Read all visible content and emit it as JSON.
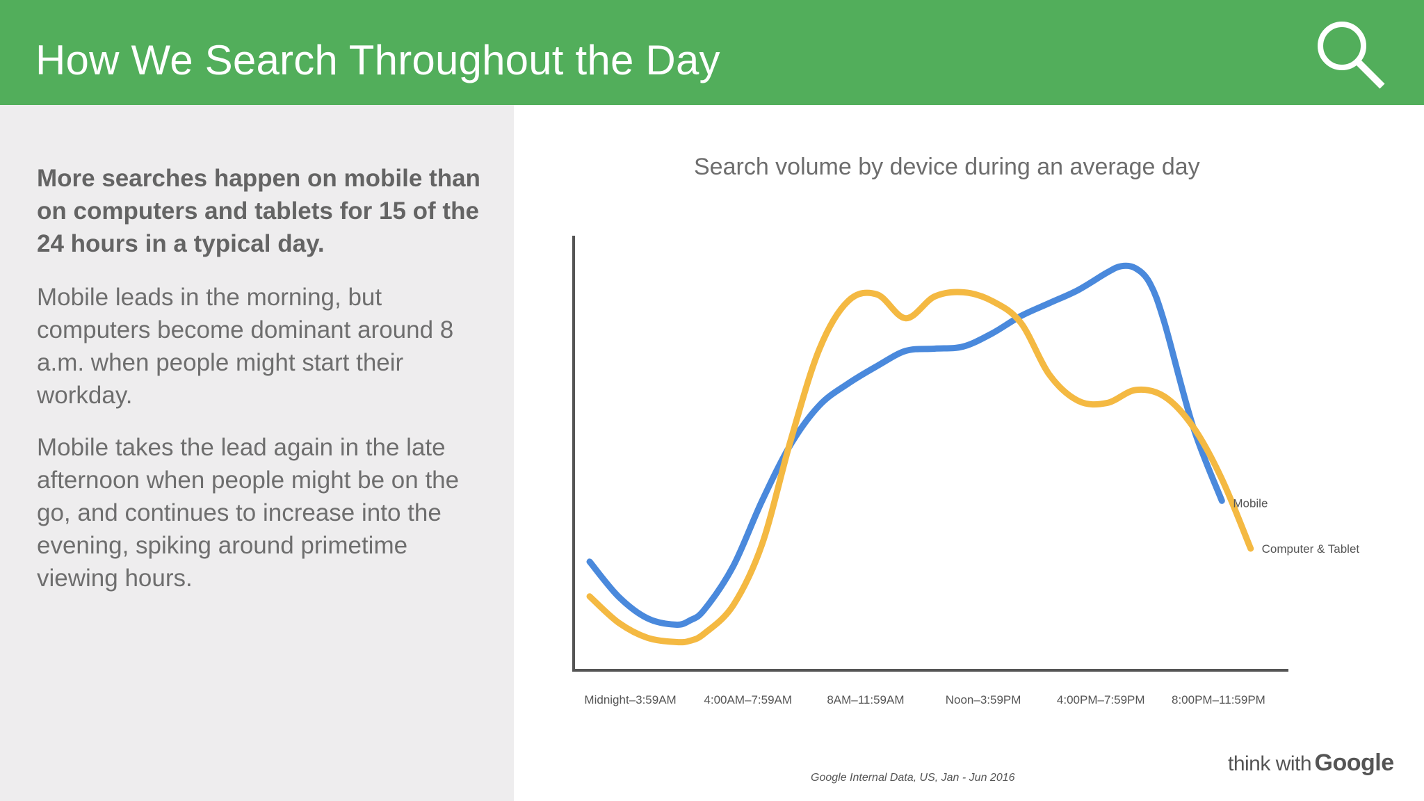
{
  "header": {
    "title": "How We Search Throughout the Day",
    "icon": "search-icon",
    "background_color": "#52ae5b"
  },
  "sidebar": {
    "lead": "More searches happen on mobile than on computers and tablets for 15 of the 24 hours in a typical day.",
    "paragraphs": [
      "Mobile leads in the morning, but computers become dominant around 8 a.m. when people might start their workday.",
      "Mobile takes the lead again in the late afternoon when people might be on the go, and continues to increase into the evening, spiking around primetime viewing hours."
    ]
  },
  "chart_data": {
    "type": "line",
    "title": "Search volume by device during an average day",
    "xlabel": "",
    "ylabel": "",
    "categories": [
      "Midnight–3:59AM",
      "4:00AM–7:59AM",
      "8AM–11:59AM",
      "Noon–3:59PM",
      "4:00PM–7:59PM",
      "8:00PM–11:59PM"
    ],
    "x_range": [
      0,
      24
    ],
    "ylim": [
      0,
      100
    ],
    "y_ticks_shown": false,
    "grid": false,
    "legend": "end-of-line labels",
    "series": [
      {
        "name": "Mobile",
        "color": "#4a89dc",
        "points": [
          [
            0,
            25
          ],
          [
            1,
            17
          ],
          [
            2,
            12
          ],
          [
            3,
            10.5
          ],
          [
            3.5,
            11.5
          ],
          [
            4,
            14
          ],
          [
            5,
            24
          ],
          [
            6,
            39
          ],
          [
            7,
            52
          ],
          [
            8,
            61
          ],
          [
            9,
            66
          ],
          [
            10,
            70
          ],
          [
            11,
            73.5
          ],
          [
            12,
            74
          ],
          [
            13,
            74.5
          ],
          [
            14,
            77.5
          ],
          [
            15,
            81.5
          ],
          [
            16,
            84.5
          ],
          [
            17,
            87.5
          ],
          [
            18,
            91.5
          ],
          [
            18.5,
            93
          ],
          [
            19,
            92.5
          ],
          [
            19.5,
            89
          ],
          [
            20,
            80
          ],
          [
            21,
            56
          ],
          [
            22,
            39
          ]
        ]
      },
      {
        "name": "Computer & Tablet",
        "color": "#f4b942",
        "points": [
          [
            0,
            17
          ],
          [
            1,
            11
          ],
          [
            2,
            7.5
          ],
          [
            3,
            6.5
          ],
          [
            3.5,
            6.8
          ],
          [
            4,
            8.5
          ],
          [
            5,
            15
          ],
          [
            6,
            29
          ],
          [
            7,
            53
          ],
          [
            8,
            74
          ],
          [
            9,
            85
          ],
          [
            10,
            86.5
          ],
          [
            11,
            81
          ],
          [
            12,
            86
          ],
          [
            13,
            87
          ],
          [
            14,
            85
          ],
          [
            15,
            80
          ],
          [
            16,
            68
          ],
          [
            17,
            62
          ],
          [
            18,
            61.5
          ],
          [
            19,
            64.5
          ],
          [
            20,
            63
          ],
          [
            21,
            56
          ],
          [
            22,
            44
          ],
          [
            23,
            28
          ]
        ]
      }
    ]
  },
  "footer": {
    "source": "Google Internal Data, US, Jan - Jun 2016",
    "brand_prefix": "think with",
    "brand_name": "Google"
  }
}
